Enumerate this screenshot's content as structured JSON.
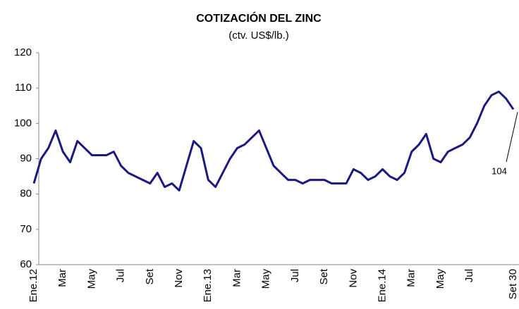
{
  "chart_data": {
    "type": "line",
    "title": "COTIZACIÓN DEL ZINC",
    "subtitle": "(ctv. US$/lb.)",
    "categories": [
      "Ene.12",
      null,
      null,
      null,
      "Mar",
      null,
      null,
      null,
      "May",
      null,
      null,
      null,
      "Jul",
      null,
      null,
      null,
      "Set",
      null,
      null,
      null,
      "Nov",
      null,
      null,
      null,
      "Ene.13",
      null,
      null,
      null,
      "Mar",
      null,
      null,
      null,
      "May",
      null,
      null,
      null,
      "Jul",
      null,
      null,
      null,
      "Set",
      null,
      null,
      null,
      "Nov",
      null,
      null,
      null,
      "Ene.14",
      null,
      null,
      null,
      "Mar",
      null,
      null,
      null,
      "May",
      null,
      null,
      null,
      "Jul",
      null,
      null,
      null,
      null,
      null,
      "Set 30"
    ],
    "series": [
      {
        "name": "Zinc",
        "color": "#1a1a80",
        "values": [
          83,
          90,
          93,
          98,
          92,
          89,
          95,
          93,
          91,
          91,
          91,
          92,
          88,
          86,
          85,
          84,
          83,
          86,
          82,
          83,
          81,
          88,
          95,
          93,
          84,
          82,
          86,
          90,
          93,
          94,
          96,
          98,
          93,
          88,
          86,
          84,
          84,
          83,
          84,
          84,
          84,
          83,
          83,
          83,
          87,
          86,
          84,
          85,
          87,
          85,
          84,
          86,
          92,
          94,
          97,
          90,
          89,
          92,
          93,
          94,
          96,
          100,
          105,
          108,
          109,
          107,
          104
        ]
      }
    ],
    "ylim": [
      60,
      120
    ],
    "yticks": [
      60,
      70,
      80,
      90,
      100,
      110,
      120
    ],
    "grid": false
  }
}
